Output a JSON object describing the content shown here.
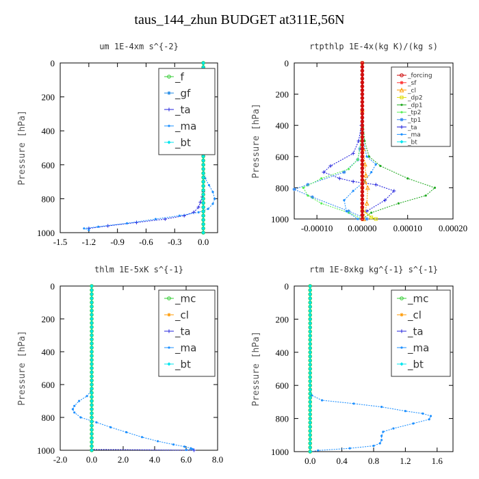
{
  "page_title": "taus_144_zhun  BUDGET at311E,56N",
  "colors": {
    "f": "#33cc33",
    "gf": "#1e88e5",
    "ta": "#2222dd",
    "ma": "#1e90ff",
    "bt": "#00e5ee",
    "forcing": "#cc0000",
    "sf": "#ff3333",
    "cl": "#ff9900",
    "dp2": "#dddd00",
    "dp1": "#22aa22",
    "tp2": "#55ee55",
    "tp1": "#3388ee",
    "mc": "#33cc33",
    "axis": "#000000"
  },
  "chart_data": [
    {
      "id": "um",
      "type": "line",
      "title": "um   1E-4xm  s^{-2}",
      "ylabel": "Pressure [hPa]",
      "xlim": [
        -1.5,
        0.15
      ],
      "ylim": [
        1000,
        0
      ],
      "xticks": [
        -1.5,
        -1.2,
        -0.9,
        -0.6,
        -0.3,
        0.0
      ],
      "xtick_labels": [
        "-1.5",
        "-1.2",
        "-0.9",
        "-0.6",
        "-0.3",
        "0.0"
      ],
      "yticks": [
        0,
        200,
        400,
        600,
        800,
        1000
      ],
      "legend": [
        "_f",
        "_gf",
        "_ta",
        "_ma",
        "_bt"
      ],
      "legend_loc": "top-right",
      "series": [
        {
          "key": "ta",
          "x": [
            0,
            0,
            0,
            0,
            -0.01,
            -0.03,
            -0.05,
            -0.1,
            -0.2,
            -0.4,
            -0.7,
            -1.0,
            -1.2
          ],
          "y": [
            0,
            600,
            700,
            760,
            790,
            820,
            850,
            880,
            900,
            920,
            940,
            960,
            975
          ],
          "marker": "plus"
        },
        {
          "key": "ma",
          "x": [
            0,
            0,
            0.02,
            0.06,
            0.1,
            0.12,
            0.1,
            0.05,
            -0.05,
            -0.25,
            -0.5,
            -0.8,
            -1.1,
            -1.25,
            -1.2
          ],
          "y": [
            0,
            620,
            680,
            720,
            760,
            800,
            830,
            860,
            880,
            900,
            920,
            945,
            965,
            975,
            985
          ],
          "marker": "dot"
        },
        {
          "key": "gf",
          "x": [
            0,
            0
          ],
          "y": [
            0,
            1000
          ],
          "marker": "star"
        },
        {
          "key": "f",
          "x": [
            0,
            0
          ],
          "y": [
            0,
            1000
          ],
          "marker": "circle"
        },
        {
          "key": "bt",
          "x": [
            0,
            0
          ],
          "y": [
            0,
            1000
          ],
          "marker": "diamond"
        }
      ]
    },
    {
      "id": "rtpthlp",
      "type": "line",
      "title": "rtpthlp   1E-4x(kg K)/(kg s)",
      "ylabel": "Pressure [hPa]",
      "xlim": [
        -0.00015,
        0.0002
      ],
      "ylim": [
        1000,
        0
      ],
      "xticks": [
        -0.0001,
        0.0,
        0.0001,
        0.0002
      ],
      "xtick_labels": [
        "-0.00010",
        "0.00000",
        "0.00010",
        "0.00020"
      ],
      "yticks": [
        0,
        200,
        400,
        600,
        800,
        1000
      ],
      "legend": [
        "_forcing",
        "_sf",
        "_cl",
        "_dp2",
        "_dp1",
        "_tp2",
        "_tp1",
        "_ta",
        "_ma",
        "_bt"
      ],
      "legend_loc": "top-right",
      "series": [
        {
          "key": "ta",
          "x": [
            0,
            -2e-06,
            -8e-06,
            -2e-05,
            -7e-05,
            -8.5e-05,
            -5e-05,
            -2e-05,
            3e-05,
            7e-05,
            5e-05,
            1e-05
          ],
          "y": [
            200,
            400,
            500,
            580,
            660,
            700,
            740,
            760,
            780,
            820,
            880,
            950
          ],
          "marker": "plus"
        },
        {
          "key": "tp1",
          "x": [
            0,
            -1e-06,
            -5e-06,
            -1e-05,
            -4e-05,
            -0.00012,
            -0.00015,
            -0.00011,
            -3e-05,
            1e-05
          ],
          "y": [
            300,
            450,
            550,
            620,
            700,
            780,
            810,
            860,
            950,
            1000
          ],
          "marker": "star"
        },
        {
          "key": "tp2",
          "x": [
            0,
            -3e-06,
            -1e-05,
            -3e-05,
            -9e-05,
            -0.00013,
            -0.00012,
            -9e-05,
            -3e-05,
            0
          ],
          "y": [
            300,
            500,
            620,
            680,
            740,
            800,
            850,
            900,
            960,
            1000
          ],
          "marker": "dot"
        },
        {
          "key": "dp1",
          "x": [
            0,
            5e-06,
            1.5e-05,
            4e-05,
            0.0001,
            0.00016,
            0.00014,
            8e-05,
            2e-05,
            0
          ],
          "y": [
            300,
            500,
            600,
            660,
            740,
            800,
            850,
            900,
            960,
            1000
          ],
          "marker": "dot"
        },
        {
          "key": "ma",
          "x": [
            0,
            2e-06,
            1e-05,
            3e-05,
            2e-05,
            5e-06,
            -2e-05,
            -4e-05,
            -3.5e-05,
            -1e-05
          ],
          "y": [
            300,
            500,
            600,
            650,
            700,
            760,
            820,
            880,
            950,
            1000
          ],
          "marker": "dot"
        },
        {
          "key": "cl",
          "x": [
            0,
            2e-06,
            6e-06,
            8e-06,
            6e-06,
            1.2e-05,
            1e-05,
            3e-06
          ],
          "y": [
            300,
            550,
            650,
            720,
            760,
            800,
            900,
            1000
          ],
          "marker": "tri"
        },
        {
          "key": "dp2",
          "x": [
            0,
            0,
            0,
            2e-05,
            3e-05
          ],
          "y": [
            0,
            800,
            940,
            990,
            1000
          ],
          "marker": "square"
        },
        {
          "key": "bt",
          "x": [
            0,
            0
          ],
          "y": [
            0,
            1000
          ],
          "marker": "diamond"
        },
        {
          "key": "sf",
          "x": [
            0,
            0
          ],
          "y": [
            0,
            1000
          ],
          "marker": "star"
        },
        {
          "key": "forcing",
          "x": [
            0,
            0
          ],
          "y": [
            0,
            1000
          ],
          "marker": "circle"
        }
      ]
    },
    {
      "id": "thlm",
      "type": "line",
      "title": "thlm   1E-5xK  s^{-1}",
      "ylabel": "Pressure [hPa]",
      "xlim": [
        -2.0,
        8.0
      ],
      "ylim": [
        1000,
        0
      ],
      "xticks": [
        -2.0,
        0.0,
        2.0,
        4.0,
        6.0,
        8.0
      ],
      "xtick_labels": [
        "-2.0",
        "0.0",
        "2.0",
        "4.0",
        "6.0",
        "8.0"
      ],
      "yticks": [
        0,
        200,
        400,
        600,
        800,
        1000
      ],
      "legend": [
        "_mc",
        "_cl",
        "_ta",
        "_ma",
        "_bt"
      ],
      "legend_loc": "top-right",
      "series": [
        {
          "key": "ta",
          "x": [
            0,
            0,
            0,
            0,
            0,
            6.5
          ],
          "y": [
            0,
            600,
            800,
            900,
            995,
            1000
          ],
          "marker": "plus"
        },
        {
          "key": "ma",
          "x": [
            0,
            0,
            -0.05,
            -0.3,
            -0.8,
            -1.1,
            -1.2,
            -1.1,
            -0.7,
            0.3,
            1.2,
            2.2,
            3.2,
            4.2,
            5.2,
            5.9,
            6.3,
            6.4,
            6.0
          ],
          "y": [
            0,
            600,
            640,
            670,
            700,
            730,
            750,
            770,
            800,
            830,
            860,
            890,
            920,
            945,
            965,
            978,
            988,
            993,
            998
          ],
          "marker": "dot"
        },
        {
          "key": "cl",
          "x": [
            0,
            0
          ],
          "y": [
            0,
            1000
          ],
          "marker": "star"
        },
        {
          "key": "mc",
          "x": [
            0,
            0
          ],
          "y": [
            0,
            1000
          ],
          "marker": "circle"
        },
        {
          "key": "bt",
          "x": [
            0,
            0
          ],
          "y": [
            0,
            1000
          ],
          "marker": "diamond"
        }
      ]
    },
    {
      "id": "rtm",
      "type": "line",
      "title": "rtm   1E-8xkg  kg^{-1}  s^{-1}",
      "ylabel": "Pressure [hPa]",
      "xlim": [
        -0.2,
        1.8
      ],
      "ylim": [
        1000,
        0
      ],
      "xticks": [
        0.0,
        0.4,
        0.8,
        1.2,
        1.6
      ],
      "xtick_labels": [
        "0.0",
        "0.4",
        "0.8",
        "1.2",
        "1.6"
      ],
      "yticks": [
        0,
        200,
        400,
        600,
        800,
        1000
      ],
      "legend": [
        "_mc",
        "_cl",
        "_ta",
        "_ma",
        "_bt"
      ],
      "legend_loc": "top-right",
      "series": [
        {
          "key": "ta",
          "x": [
            0,
            0
          ],
          "y": [
            0,
            1000
          ],
          "marker": "plus"
        },
        {
          "key": "ma",
          "x": [
            0,
            0,
            0.02,
            0.15,
            0.55,
            0.9,
            1.2,
            1.42,
            1.52,
            1.5,
            1.3,
            1.05,
            0.92,
            0.9,
            0.9,
            0.88,
            0.8,
            0.5,
            0.1,
            0
          ],
          "y": [
            0,
            620,
            660,
            690,
            710,
            730,
            755,
            770,
            785,
            805,
            830,
            860,
            880,
            905,
            930,
            950,
            965,
            980,
            993,
            1000
          ],
          "marker": "dot"
        },
        {
          "key": "cl",
          "x": [
            0,
            0
          ],
          "y": [
            0,
            1000
          ],
          "marker": "star"
        },
        {
          "key": "mc",
          "x": [
            0,
            0
          ],
          "y": [
            0,
            1000
          ],
          "marker": "circle"
        },
        {
          "key": "bt",
          "x": [
            0,
            0
          ],
          "y": [
            0,
            1000
          ],
          "marker": "diamond"
        }
      ]
    }
  ]
}
